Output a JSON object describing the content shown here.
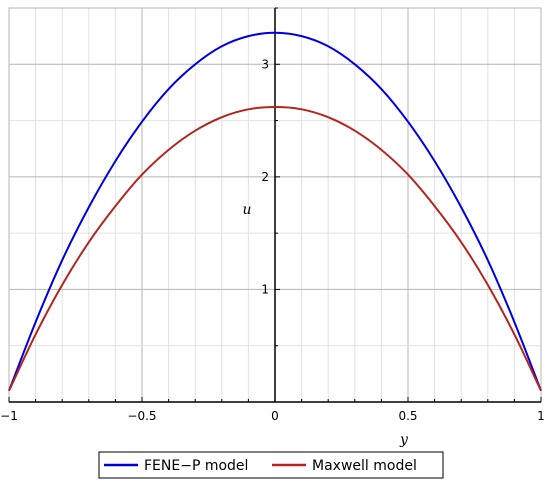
{
  "chart_data": {
    "type": "line",
    "xlabel": "y",
    "ylabel": "u",
    "xlim": [
      -1,
      1
    ],
    "ylim": [
      0,
      3.5
    ],
    "x_ticks": [
      {
        "value": -1,
        "label": "−1"
      },
      {
        "value": -0.5,
        "label": "−0.5"
      },
      {
        "value": 0,
        "label": "0"
      },
      {
        "value": 0.5,
        "label": "0.5"
      },
      {
        "value": 1,
        "label": "1"
      }
    ],
    "y_ticks": [
      {
        "value": 1,
        "label": "1"
      },
      {
        "value": 2,
        "label": "2"
      },
      {
        "value": 3,
        "label": "3"
      }
    ],
    "grid": true,
    "legend_position": "bottom",
    "series": [
      {
        "name": "FENE−P model",
        "color": "#0000dd",
        "x": [
          -1,
          -0.9,
          -0.8,
          -0.7,
          -0.6,
          -0.5,
          -0.4,
          -0.3,
          -0.2,
          -0.1,
          0,
          0.1,
          0.2,
          0.3,
          0.4,
          0.5,
          0.6,
          0.7,
          0.8,
          0.9,
          1
        ],
        "y": [
          0.1,
          0.71,
          1.26,
          1.73,
          2.14,
          2.49,
          2.78,
          3.0,
          3.16,
          3.25,
          3.28,
          3.25,
          3.16,
          3.0,
          2.78,
          2.49,
          2.14,
          1.73,
          1.26,
          0.71,
          0.1
        ]
      },
      {
        "name": "Maxwell model",
        "color": "#b3261e",
        "x": [
          -1,
          -0.9,
          -0.8,
          -0.7,
          -0.6,
          -0.5,
          -0.4,
          -0.3,
          -0.2,
          -0.1,
          0,
          0.1,
          0.2,
          0.3,
          0.4,
          0.5,
          0.6,
          0.7,
          0.8,
          0.9,
          1
        ],
        "y": [
          0.1,
          0.6,
          1.04,
          1.42,
          1.74,
          2.02,
          2.24,
          2.41,
          2.53,
          2.6,
          2.62,
          2.6,
          2.53,
          2.41,
          2.24,
          2.02,
          1.74,
          1.42,
          1.04,
          0.6,
          0.1
        ]
      }
    ]
  }
}
